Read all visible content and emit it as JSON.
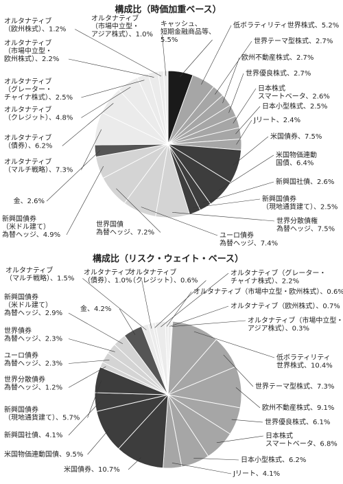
{
  "chart_data": [
    {
      "type": "pie",
      "title": "構成比（時価加重ベース）",
      "unit": "%",
      "slices": [
        {
          "label": [
            "キャッシュ、",
            "短期金融商品等、",
            "5.5%"
          ],
          "value": 5.5,
          "color": "#1a1a1a"
        },
        {
          "label": [
            "低ボラティリティ世界株式、5.2%"
          ],
          "value": 5.2,
          "color": "#a6a6a6"
        },
        {
          "label": [
            "世界テーマ型株式、2.7%"
          ],
          "value": 2.7,
          "color": "#a6a6a6"
        },
        {
          "label": [
            "欧州不動産株式、2.7%"
          ],
          "value": 2.7,
          "color": "#a6a6a6"
        },
        {
          "label": [
            "世界優良株式、2.7%"
          ],
          "value": 2.7,
          "color": "#a6a6a6"
        },
        {
          "label": [
            "日本株式",
            "スマートベータ、2.6%"
          ],
          "value": 2.6,
          "color": "#a6a6a6"
        },
        {
          "label": [
            "日本小型株式、2.5%"
          ],
          "value": 2.5,
          "color": "#a6a6a6"
        },
        {
          "label": [
            "Jリート、2.4%"
          ],
          "value": 2.4,
          "color": "#a6a6a6"
        },
        {
          "label": [
            "米国債券、7.5%"
          ],
          "value": 7.5,
          "color": "#3d3d3d"
        },
        {
          "label": [
            "米国物価連動",
            "国債、6.4%"
          ],
          "value": 6.4,
          "color": "#3d3d3d"
        },
        {
          "label": [
            "新興国社債、2.6%"
          ],
          "value": 2.6,
          "color": "#3d3d3d"
        },
        {
          "label": [
            "新興国債券",
            "（現地通貨建て）、2.5%"
          ],
          "value": 2.5,
          "color": "#3d3d3d"
        },
        {
          "label": [
            "世界分散債権",
            "為替ヘッジ、7.5%"
          ],
          "value": 7.5,
          "color": "#d4d4d4"
        },
        {
          "label": [
            "ユーロ債券",
            "為替ヘッジ、7.4%"
          ],
          "value": 7.4,
          "color": "#d4d4d4"
        },
        {
          "label": [
            "世界国債",
            "為替ヘッジ、7.2%"
          ],
          "value": 7.2,
          "color": "#d4d4d4"
        },
        {
          "label": [
            "新興国債券",
            "（米ドル建て）",
            "為替ヘッジ、4.9%"
          ],
          "value": 4.9,
          "color": "#d4d4d4"
        },
        {
          "label": [
            "金、2.6%"
          ],
          "value": 2.6,
          "color": "#555555"
        },
        {
          "label": [
            "オルタナティブ",
            "（マルチ戦略）、7.3%"
          ],
          "value": 7.3,
          "color": "#ebebeb"
        },
        {
          "label": [
            "オルタナティブ",
            "（債券）、6.2%"
          ],
          "value": 6.2,
          "color": "#ebebeb"
        },
        {
          "label": [
            "オルタナティブ",
            "（クレジット）、4.8%"
          ],
          "value": 4.8,
          "color": "#ebebeb"
        },
        {
          "label": [
            "オルタナティブ",
            "（グレーター・",
            "チャイナ株式）、2.5%"
          ],
          "value": 2.5,
          "color": "#ebebeb"
        },
        {
          "label": [
            "オルタナティブ",
            "（市場中立型・",
            "欧州株式）、2.2%"
          ],
          "value": 2.2,
          "color": "#ebebeb"
        },
        {
          "label": [
            "オルタナティブ",
            "（欧州株式）、1.2%"
          ],
          "value": 1.2,
          "color": "#ebebeb"
        },
        {
          "label": [
            "オルタナティブ",
            "（市場中立型・",
            "アジア株式）、1.0%"
          ],
          "value": 1.0,
          "color": "#ebebeb"
        }
      ]
    },
    {
      "type": "pie",
      "title": "構成比（リスク・ウェイト・ベース）",
      "unit": "%",
      "slices": [
        {
          "label": [
            "オルタナティブ（欧州株式）、0.7%"
          ],
          "value": 0.7,
          "color": "#ebebeb"
        },
        {
          "label": [
            "オルタナティブ（市場中立型・",
            "アジア株式）、0.3%"
          ],
          "value": 0.3,
          "color": "#ebebeb"
        },
        {
          "label": [
            "低ボラティリティ",
            "世界株式、10.4%"
          ],
          "value": 10.4,
          "color": "#a6a6a6"
        },
        {
          "label": [
            "世界テーマ型株式、7.3%"
          ],
          "value": 7.3,
          "color": "#a6a6a6"
        },
        {
          "label": [
            "欧州不動産株式、9.1%"
          ],
          "value": 9.1,
          "color": "#a6a6a6"
        },
        {
          "label": [
            "世界優良株式、6.1%"
          ],
          "value": 6.1,
          "color": "#a6a6a6"
        },
        {
          "label": [
            "日本株式",
            "スマートベータ、6.8%"
          ],
          "value": 6.8,
          "color": "#a6a6a6"
        },
        {
          "label": [
            "日本小型株式、6.2%"
          ],
          "value": 6.2,
          "color": "#a6a6a6"
        },
        {
          "label": [
            "Jリート、4.1%"
          ],
          "value": 4.1,
          "color": "#a6a6a6"
        },
        {
          "label": [
            "米国債券、10.7%"
          ],
          "value": 10.7,
          "color": "#3d3d3d"
        },
        {
          "label": [
            "米国物価連動国債、9.5%"
          ],
          "value": 9.5,
          "color": "#3d3d3d"
        },
        {
          "label": [
            "新興国社債、4.1%"
          ],
          "value": 4.1,
          "color": "#3d3d3d"
        },
        {
          "label": [
            "新興国債券",
            "（現地通貨建て）、5.7%"
          ],
          "value": 5.7,
          "color": "#3d3d3d"
        },
        {
          "label": [
            "世界分散債券",
            "為替ヘッジ、1.2%"
          ],
          "value": 1.2,
          "color": "#d4d4d4"
        },
        {
          "label": [
            "ユーロ債券",
            "為替ヘッジ、2.3%"
          ],
          "value": 2.3,
          "color": "#d4d4d4"
        },
        {
          "label": [
            "世界債券",
            "為替ヘッジ、2.3%"
          ],
          "value": 2.3,
          "color": "#d4d4d4"
        },
        {
          "label": [
            "新興国債券",
            "（米ドル建て）",
            "為替ヘッジ、2.9%"
          ],
          "value": 2.9,
          "color": "#d4d4d4"
        },
        {
          "label": [
            "金、4.2%"
          ],
          "value": 4.2,
          "color": "#555555"
        },
        {
          "label": [
            "オルタナティブ",
            "（マルチ戦略）、1.5%"
          ],
          "value": 1.5,
          "color": "#ebebeb"
        },
        {
          "label": [
            "オルタナティブ",
            "（債券）、1.0%"
          ],
          "value": 1.0,
          "color": "#ebebeb"
        },
        {
          "label": [
            "オルタナティブ",
            "（クレジット）、0.6%"
          ],
          "value": 0.6,
          "color": "#ebebeb"
        },
        {
          "label": [
            "オルタナティブ（グレーター・",
            "チャイナ株式）、2.2%"
          ],
          "value": 2.2,
          "color": "#ebebeb"
        },
        {
          "label": [
            "オルタナティブ（市場中立型・欧州株式）、0.6%"
          ],
          "value": 0.6,
          "color": "#ebebeb"
        }
      ]
    }
  ]
}
